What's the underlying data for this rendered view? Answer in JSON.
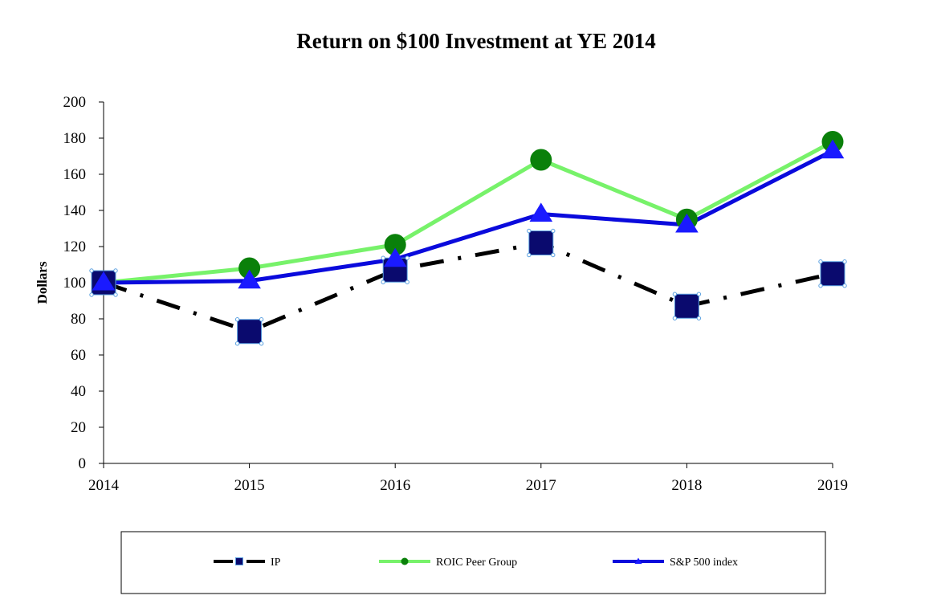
{
  "chart_data": {
    "type": "line",
    "title": "Return on $100 Investment at YE 2014",
    "xlabel": "",
    "ylabel": "Dollars",
    "x": [
      "2014",
      "2015",
      "2016",
      "2017",
      "2018",
      "2019"
    ],
    "ylim": [
      0,
      200
    ],
    "yticks": [
      0,
      20,
      40,
      60,
      80,
      100,
      120,
      140,
      160,
      180,
      200
    ],
    "grid": false,
    "legend_position": "bottom",
    "series": [
      {
        "name": "IP",
        "values": [
          100,
          73,
          107,
          122,
          87,
          105
        ],
        "color": "#000000",
        "marker_color": "#0a0a6e",
        "marker": "square",
        "line_style": "dash-dot"
      },
      {
        "name": "ROIC Peer Group",
        "values": [
          100,
          108,
          121,
          168,
          135,
          178
        ],
        "color": "#77f26a",
        "marker_color": "#0a800a",
        "marker": "circle",
        "line_style": "solid"
      },
      {
        "name": "S&P 500 index",
        "values": [
          100,
          101,
          113,
          138,
          132,
          173
        ],
        "color": "#0a0adc",
        "marker_color": "#1a1aff",
        "marker": "triangle",
        "line_style": "solid"
      }
    ]
  }
}
